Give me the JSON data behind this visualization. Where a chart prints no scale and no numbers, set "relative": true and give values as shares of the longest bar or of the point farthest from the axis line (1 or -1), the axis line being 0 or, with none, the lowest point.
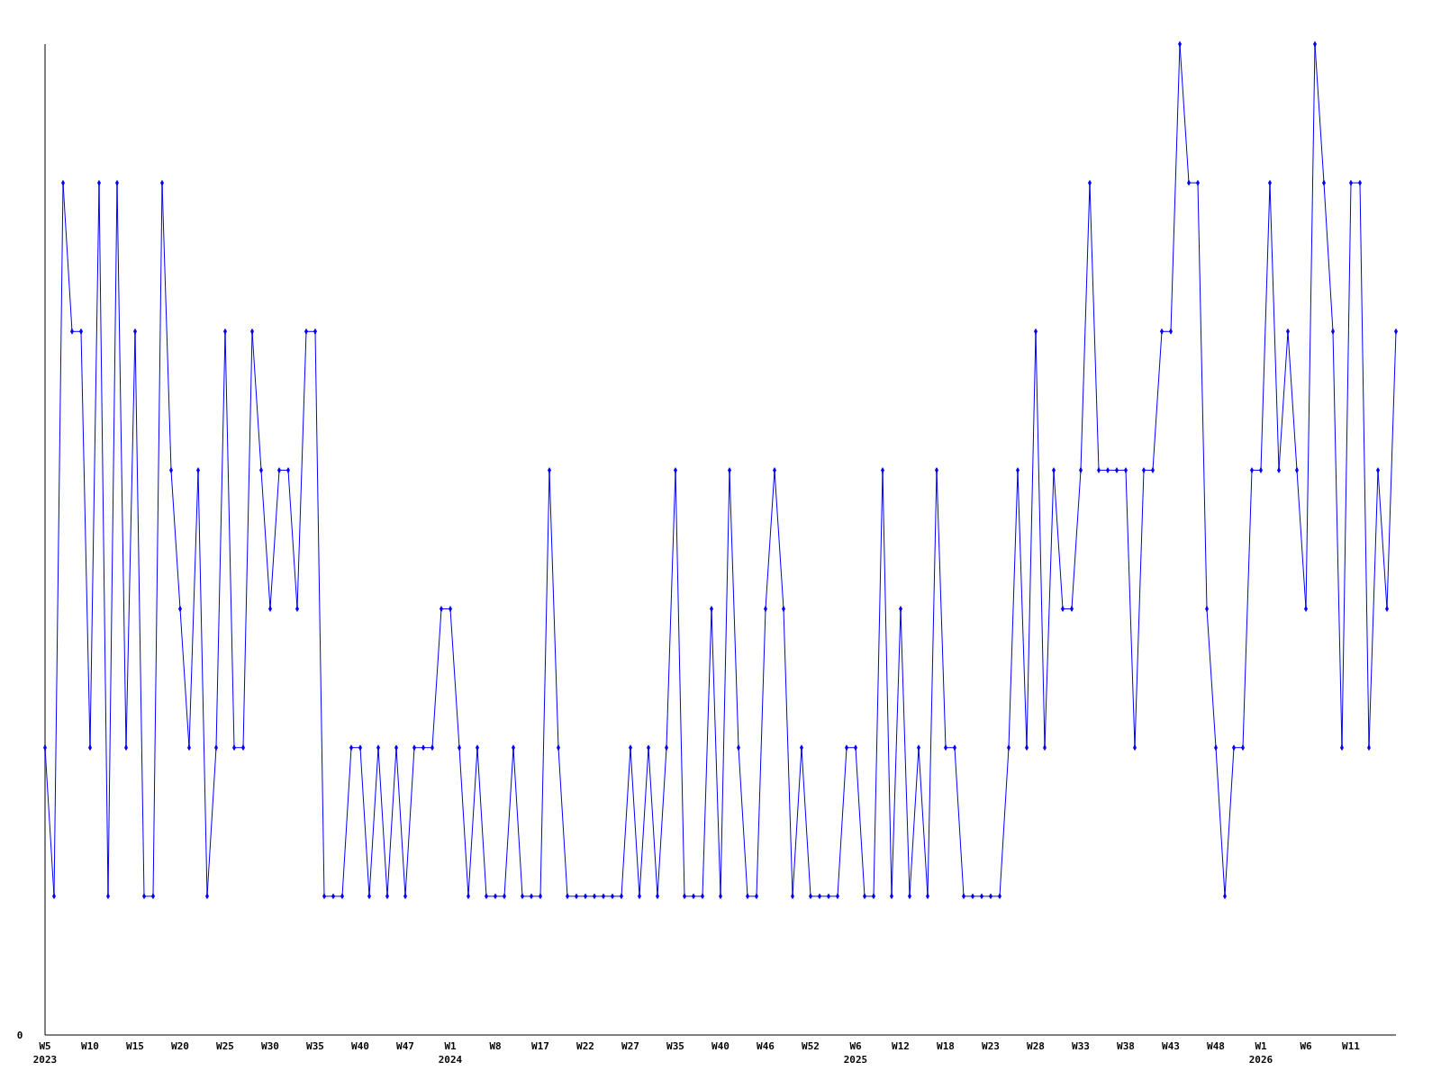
{
  "chart_data": {
    "type": "line",
    "relative": true,
    "annotations": [
      "0"
    ],
    "marker": "diamond",
    "categories": [
      "W5\n2023",
      null,
      null,
      null,
      null,
      "W10",
      null,
      null,
      null,
      null,
      "W15",
      null,
      null,
      null,
      null,
      "W20",
      null,
      null,
      null,
      null,
      "W25",
      null,
      null,
      null,
      null,
      "W30",
      null,
      null,
      null,
      null,
      "W35",
      null,
      null,
      null,
      null,
      "W40",
      null,
      null,
      null,
      null,
      "W47",
      null,
      null,
      null,
      null,
      "W1\n2024",
      null,
      null,
      null,
      null,
      "W8",
      null,
      null,
      null,
      null,
      "W17",
      null,
      null,
      null,
      null,
      "W22",
      null,
      null,
      null,
      null,
      "W27",
      null,
      null,
      null,
      null,
      "W35",
      null,
      null,
      null,
      null,
      "W40",
      null,
      null,
      null,
      null,
      "W46",
      null,
      null,
      null,
      null,
      "W52",
      null,
      null,
      null,
      null,
      "W6\n2025",
      null,
      null,
      null,
      null,
      "W12",
      null,
      null,
      null,
      null,
      "W18",
      null,
      null,
      null,
      null,
      "W23",
      null,
      null,
      null,
      null,
      "W28",
      null,
      null,
      null,
      null,
      "W33",
      null,
      null,
      null,
      null,
      "W38",
      null,
      null,
      null,
      null,
      "W43",
      null,
      null,
      null,
      null,
      "W48",
      null,
      null,
      null,
      null,
      "W1\n2026",
      null,
      null,
      null,
      null,
      "W6",
      null,
      null,
      null,
      null,
      "W11",
      null,
      null,
      null,
      null,
      null
    ],
    "series": [
      {
        "color": "#0000ff",
        "values": [
          0.29,
          0.14,
          0.86,
          0.71,
          0.71,
          0.29,
          0.86,
          0.14,
          0.86,
          0.29,
          0.71,
          0.14,
          0.14,
          0.86,
          0.57,
          0.43,
          0.29,
          0.57,
          0.14,
          0.29,
          0.71,
          0.29,
          0.29,
          0.71,
          0.57,
          0.43,
          0.57,
          0.57,
          0.43,
          0.71,
          0.71,
          0.14,
          0.14,
          0.14,
          0.29,
          0.29,
          0.14,
          0.29,
          0.14,
          0.29,
          0.14,
          0.29,
          0.29,
          0.29,
          0.43,
          0.43,
          0.29,
          0.14,
          0.29,
          0.14,
          0.14,
          0.14,
          0.29,
          0.14,
          0.14,
          0.14,
          0.57,
          0.29,
          0.14,
          0.14,
          0.14,
          0.14,
          0.14,
          0.14,
          0.14,
          0.29,
          0.14,
          0.29,
          0.14,
          0.29,
          0.57,
          0.14,
          0.14,
          0.14,
          0.43,
          0.14,
          0.57,
          0.29,
          0.14,
          0.14,
          0.43,
          0.57,
          0.43,
          0.14,
          0.29,
          0.14,
          0.14,
          0.14,
          0.14,
          0.29,
          0.29,
          0.14,
          0.14,
          0.57,
          0.14,
          0.43,
          0.14,
          0.29,
          0.14,
          0.57,
          0.29,
          0.29,
          0.14,
          0.14,
          0.14,
          0.14,
          0.14,
          0.29,
          0.57,
          0.29,
          0.71,
          0.29,
          0.57,
          0.43,
          0.43,
          0.57,
          0.86,
          0.57,
          0.57,
          0.57,
          0.57,
          0.29,
          0.57,
          0.57,
          0.71,
          0.71,
          1,
          0.86,
          0.86,
          0.43,
          0.29,
          0.14,
          0.29,
          0.29,
          0.57,
          0.57,
          0.86,
          0.57,
          0.71,
          0.57,
          0.43,
          1,
          0.86,
          0.71,
          0.29,
          0.86,
          0.86,
          0.29,
          0.57,
          0.43,
          0.71
        ]
      }
    ]
  }
}
